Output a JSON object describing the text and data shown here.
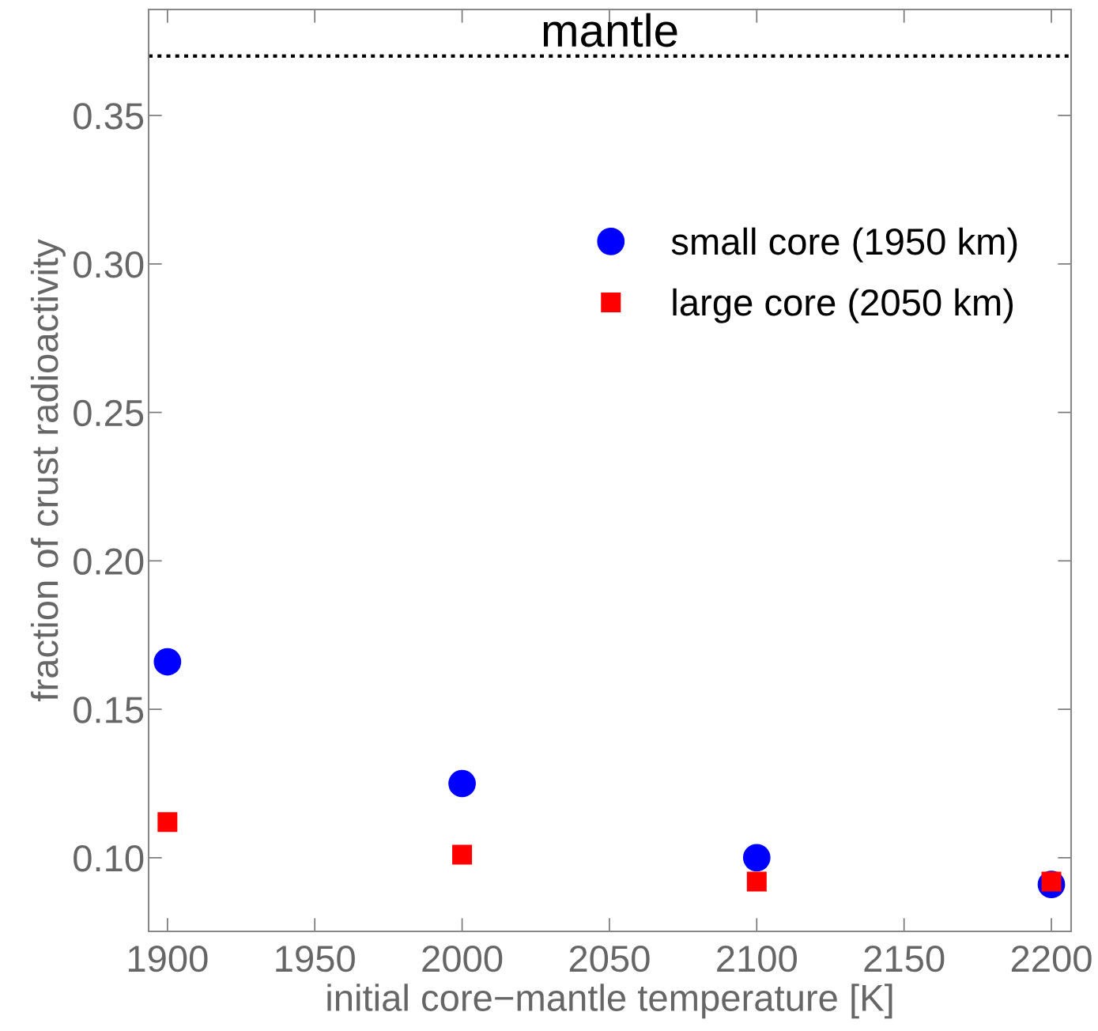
{
  "chart_data": {
    "type": "scatter",
    "xlabel": "initial core−mantle temperature [K]",
    "ylabel": "fraction of crust radioactivity",
    "x": [
      1900,
      2000,
      2100,
      2200
    ],
    "series": [
      {
        "name": "small core (1950 km)",
        "color": "#0000ff",
        "marker": "circle",
        "values": [
          0.166,
          0.125,
          0.1,
          0.091
        ]
      },
      {
        "name": "large core (2050 km)",
        "color": "#ff0000",
        "marker": "square",
        "values": [
          0.112,
          0.101,
          0.092,
          0.092
        ]
      }
    ],
    "xlim": [
      1893.6,
      2206.7
    ],
    "ylim": [
      0.0752,
      0.3857
    ],
    "xticks": [
      1900,
      1950,
      2000,
      2050,
      2100,
      2150,
      2200
    ],
    "yticks": [
      {
        "value": 0.1,
        "label": "0.10"
      },
      {
        "value": 0.15,
        "label": "0.15"
      },
      {
        "value": 0.2,
        "label": "0.20"
      },
      {
        "value": 0.25,
        "label": "0.25"
      },
      {
        "value": 0.3,
        "label": "0.30"
      },
      {
        "value": 0.35,
        "label": "0.35"
      }
    ],
    "ref_lines": [
      {
        "axis": "y",
        "value": 0.37,
        "label": "mantle",
        "color": "#000000",
        "line_style": "dotted"
      }
    ],
    "grid": false,
    "legend": "top right"
  }
}
